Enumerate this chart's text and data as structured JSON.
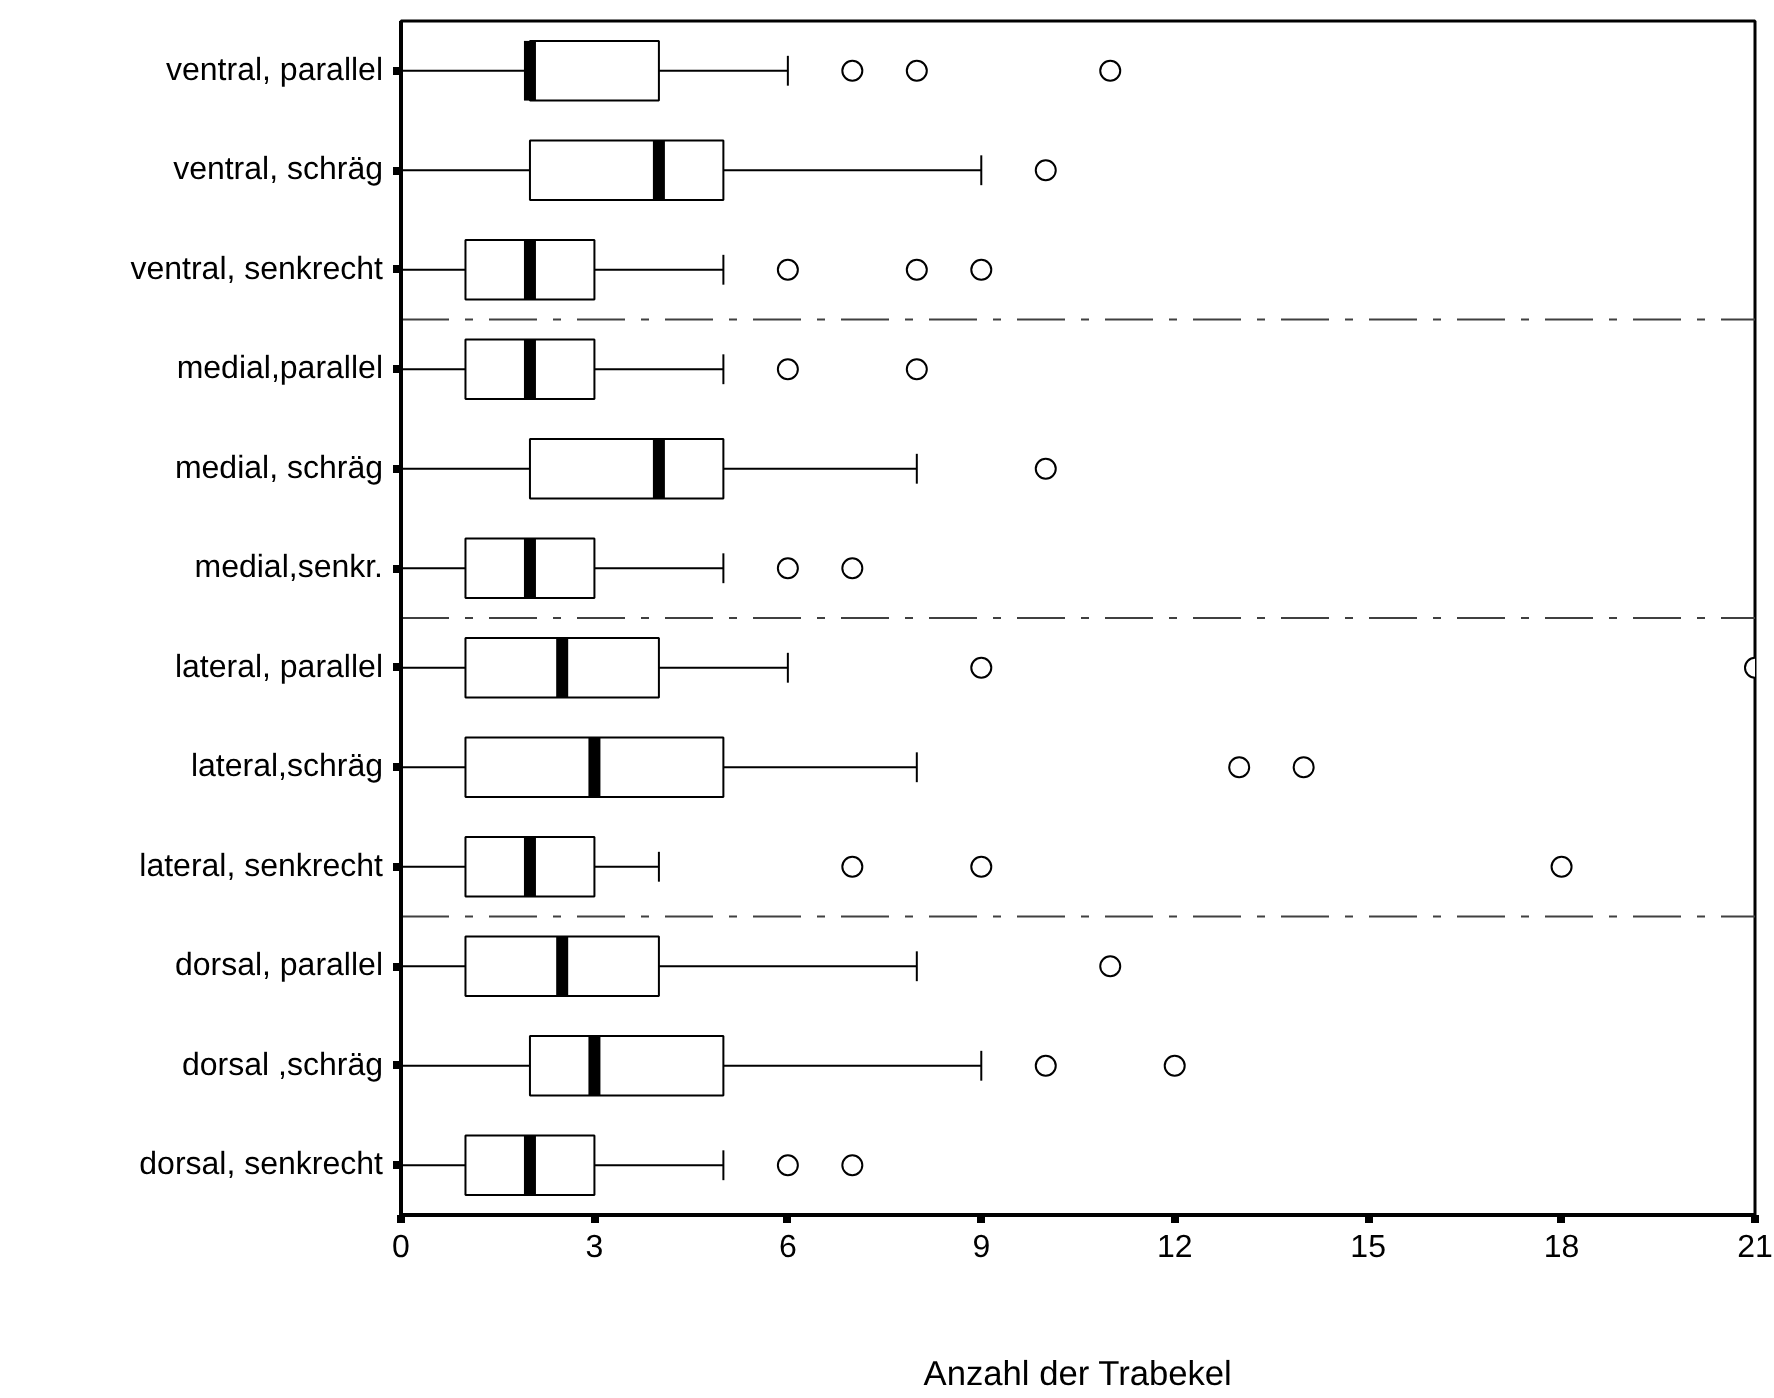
{
  "chart_data": {
    "type": "box",
    "orientation": "horizontal",
    "xlabel": "Anzahl der Trabekel",
    "categories": [
      "ventral, parallel",
      "ventral, schräg",
      "ventral, senkrecht",
      "medial,parallel",
      "medial, schräg",
      "medial,senkr.",
      "lateral, parallel",
      "lateral,schräg",
      "lateral, senkrecht",
      "dorsal, parallel",
      "dorsal ,schräg",
      "dorsal, senkrecht"
    ],
    "boxes": [
      {
        "low": 0,
        "q1": 2,
        "median": 2,
        "q3": 4,
        "high": 6,
        "outliers": [
          7,
          8,
          11
        ]
      },
      {
        "low": 0,
        "q1": 2,
        "median": 4,
        "q3": 5,
        "high": 9,
        "outliers": [
          10
        ]
      },
      {
        "low": 0,
        "q1": 1,
        "median": 2,
        "q3": 3,
        "high": 5,
        "outliers": [
          6,
          8,
          9
        ]
      },
      {
        "low": 0,
        "q1": 1,
        "median": 2,
        "q3": 3,
        "high": 5,
        "outliers": [
          6,
          8
        ]
      },
      {
        "low": 0,
        "q1": 2,
        "median": 4,
        "q3": 5,
        "high": 8,
        "outliers": [
          10
        ]
      },
      {
        "low": 0,
        "q1": 1,
        "median": 2,
        "q3": 3,
        "high": 5,
        "outliers": [
          6,
          7
        ]
      },
      {
        "low": 0,
        "q1": 1,
        "median": 2.5,
        "q3": 4,
        "high": 6,
        "outliers": [
          9,
          21
        ]
      },
      {
        "low": 0,
        "q1": 1,
        "median": 3,
        "q3": 5,
        "high": 8,
        "outliers": [
          13,
          14
        ]
      },
      {
        "low": 0,
        "q1": 1,
        "median": 2,
        "q3": 3,
        "high": 4,
        "outliers": [
          7,
          9,
          18
        ]
      },
      {
        "low": 0,
        "q1": 1,
        "median": 2.5,
        "q3": 4,
        "high": 8,
        "outliers": [
          11
        ]
      },
      {
        "low": 0,
        "q1": 2,
        "median": 3,
        "q3": 5,
        "high": 9,
        "outliers": [
          10,
          12
        ]
      },
      {
        "low": 0,
        "q1": 1,
        "median": 2,
        "q3": 3,
        "high": 5,
        "outliers": [
          6,
          7
        ]
      }
    ],
    "xlim": [
      0,
      21
    ],
    "xticks": [
      0,
      3,
      6,
      9,
      12,
      15,
      18,
      21
    ],
    "grid": false
  }
}
